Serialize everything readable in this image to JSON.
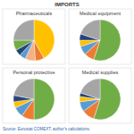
{
  "title": "IMPORTS",
  "source": "Source: Eurostat COMEXT; author's calculations.",
  "chart_data": [
    {
      "type": "pie",
      "title": "Pharmaceuticals",
      "values": [
        42,
        7,
        8,
        5,
        5,
        8,
        25
      ],
      "colors": [
        "#ffc000",
        "#ed7d31",
        "#f4b183",
        "#5b9bd5",
        "#264478",
        "#70ad47",
        "#a5a5a5"
      ]
    },
    {
      "type": "pie",
      "title": "Medical equipment",
      "values": [
        55,
        8,
        7,
        5,
        5,
        20
      ],
      "colors": [
        "#70ad47",
        "#ed7d31",
        "#5b9bd5",
        "#ffc000",
        "#264478",
        "#a5a5a5"
      ]
    },
    {
      "type": "pie",
      "title": "Personal protective",
      "values": [
        50,
        10,
        8,
        5,
        5,
        22
      ],
      "colors": [
        "#70ad47",
        "#ed7d31",
        "#5b9bd5",
        "#ffc000",
        "#264478",
        "#a5a5a5"
      ]
    },
    {
      "type": "pie",
      "title": "Medical supplies",
      "values": [
        55,
        10,
        8,
        4,
        3,
        20
      ],
      "colors": [
        "#70ad47",
        "#ed7d31",
        "#5b9bd5",
        "#ffc000",
        "#264478",
        "#a5a5a5"
      ]
    }
  ]
}
